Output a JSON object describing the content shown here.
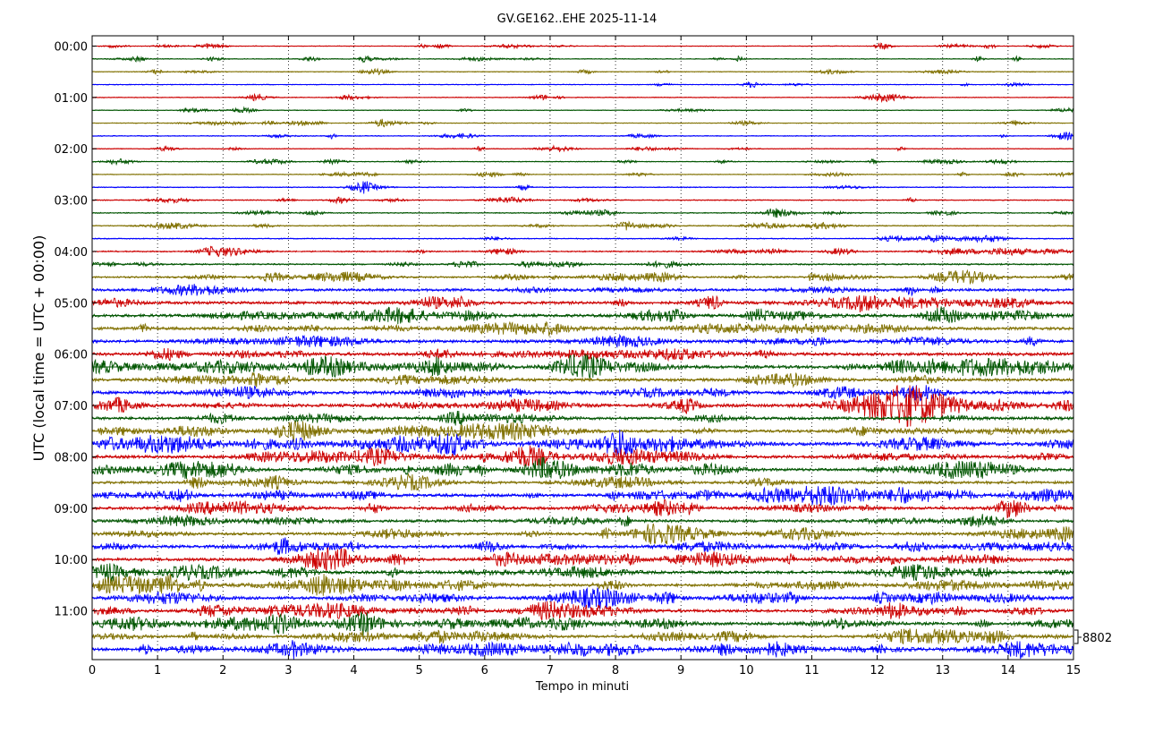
{
  "chart_data": {
    "type": "line",
    "title": "GV.GE162..EHE 2025-11-14",
    "xlabel": "Tempo in minuti",
    "ylabel": "UTC (local time = UTC + 00:00)",
    "xlim": [
      0,
      15
    ],
    "x_ticks": [
      "0",
      "1",
      "2",
      "3",
      "4",
      "5",
      "6",
      "7",
      "8",
      "9",
      "10",
      "11",
      "12",
      "13",
      "14",
      "15"
    ],
    "y_tick_labels": [
      "00:00",
      "01:00",
      "02:00",
      "03:00",
      "04:00",
      "05:00",
      "06:00",
      "07:00",
      "08:00",
      "09:00",
      "10:00",
      "11:00"
    ],
    "grid": "vertical dotted",
    "trace_colors": [
      "#cc0000",
      "#005500",
      "#807000",
      "#0000ff"
    ],
    "trace_count": 48,
    "trace_interval_minutes": 15,
    "scale_label": "8802",
    "activity_levels": [
      0.1,
      0.12,
      0.12,
      0.14,
      0.12,
      0.1,
      0.1,
      0.14,
      0.12,
      0.12,
      0.1,
      0.16,
      0.18,
      0.2,
      0.22,
      0.2,
      0.3,
      0.35,
      0.45,
      0.75,
      0.85,
      0.85,
      0.85,
      0.85,
      0.9,
      0.9,
      0.85,
      0.9,
      0.9,
      0.85,
      0.8,
      0.9,
      0.85,
      0.8,
      0.75,
      0.85,
      0.85,
      0.8,
      0.75,
      0.85,
      0.85,
      0.8,
      0.8,
      0.85,
      0.85,
      0.8,
      0.7,
      0.85
    ]
  }
}
